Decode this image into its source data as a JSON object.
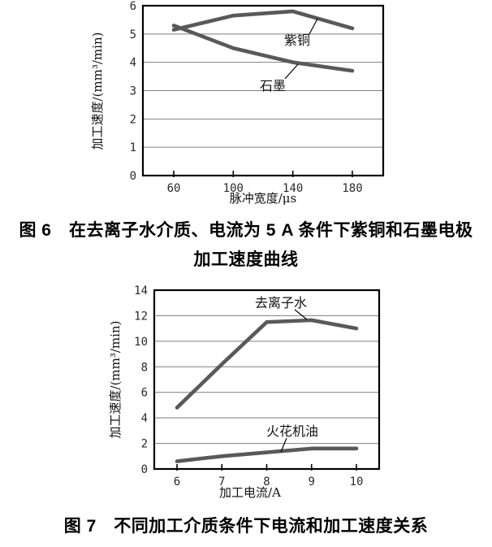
{
  "page": {
    "background": "#ffffff"
  },
  "figure6": {
    "caption_line1": "图 6　在去离子水介质、电流为 5 A 条件下紫铜和石墨电极",
    "caption_line2": "加工速度曲线"
  },
  "figure7": {
    "caption": "图 7　不同加工介质条件下电流和加工速度关系"
  },
  "chart_data": [
    {
      "type": "line",
      "title": "",
      "x": [
        60,
        100,
        140,
        180
      ],
      "xlabel": "脉冲宽度/μs",
      "ylabel": "加工速度/(mm³/min)",
      "ylim": [
        0,
        6
      ],
      "ytick_step": 1,
      "grid": true,
      "legend_position": "inline-annotations",
      "line_color": "#595959",
      "grid_color": "#7f7f7f",
      "frame_color": "#000000",
      "series": [
        {
          "name": "紫铜",
          "values": [
            5.15,
            5.65,
            5.8,
            5.2
          ]
        },
        {
          "name": "石墨",
          "values": [
            5.3,
            4.5,
            4.0,
            3.7
          ]
        }
      ]
    },
    {
      "type": "line",
      "title": "",
      "x": [
        6,
        7,
        8,
        9,
        10
      ],
      "xlabel": "加工电流/A",
      "ylabel": "加工速度/(mm³/min)",
      "ylim": [
        0,
        14
      ],
      "ytick_step": 2,
      "grid": true,
      "legend_position": "inline-annotations",
      "line_color": "#595959",
      "grid_color": "#7f7f7f",
      "frame_color": "#000000",
      "series": [
        {
          "name": "去离子水",
          "values": [
            4.8,
            8.2,
            11.5,
            11.65,
            11.0
          ]
        },
        {
          "name": "火花机油",
          "values": [
            0.6,
            1.0,
            1.3,
            1.6,
            1.6
          ]
        }
      ]
    }
  ]
}
